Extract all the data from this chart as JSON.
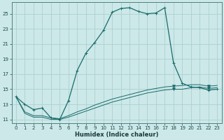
{
  "xlabel": "Humidex (Indice chaleur)",
  "xlim": [
    -0.5,
    23.5
  ],
  "ylim": [
    10.5,
    26.5
  ],
  "xticks": [
    0,
    1,
    2,
    3,
    4,
    5,
    6,
    7,
    8,
    9,
    10,
    11,
    12,
    13,
    14,
    15,
    16,
    17,
    18,
    19,
    20,
    21,
    22,
    23
  ],
  "yticks": [
    11,
    13,
    15,
    17,
    19,
    21,
    23,
    25
  ],
  "bg_color": "#cce8e8",
  "grid_color": "#a8cccc",
  "line_color": "#1a6b6b",
  "line1_x": [
    0,
    1,
    2,
    3,
    4,
    5,
    6,
    7,
    8,
    9,
    10,
    11,
    12,
    13,
    14,
    15,
    16,
    17,
    18,
    19,
    20,
    21,
    22,
    23
  ],
  "line1_y": [
    14.0,
    13.0,
    12.3,
    12.5,
    11.2,
    11.0,
    13.5,
    17.5,
    19.8,
    21.2,
    22.8,
    25.2,
    25.7,
    25.8,
    25.3,
    25.0,
    25.1,
    25.8,
    18.5,
    15.8,
    15.3,
    15.2,
    14.9,
    15.0
  ],
  "line2_x": [
    0,
    1,
    2,
    3,
    4,
    5,
    6,
    7,
    8,
    9,
    10,
    11,
    12,
    13,
    14,
    15,
    16,
    17,
    18,
    19,
    20,
    21,
    22,
    23
  ],
  "line2_y": [
    14.0,
    11.8,
    11.3,
    11.3,
    11.0,
    11.0,
    11.3,
    11.7,
    12.1,
    12.5,
    12.9,
    13.3,
    13.6,
    13.9,
    14.2,
    14.5,
    14.7,
    14.9,
    15.0,
    15.0,
    15.2,
    15.3,
    15.1,
    15.2
  ],
  "line3_x": [
    0,
    1,
    2,
    3,
    4,
    5,
    6,
    7,
    8,
    9,
    10,
    11,
    12,
    13,
    14,
    15,
    16,
    17,
    18,
    19,
    20,
    21,
    22,
    23
  ],
  "line3_y": [
    14.0,
    12.0,
    11.5,
    11.5,
    11.2,
    11.1,
    11.5,
    12.0,
    12.4,
    12.9,
    13.3,
    13.7,
    14.0,
    14.3,
    14.6,
    14.9,
    15.1,
    15.3,
    15.4,
    15.5,
    15.6,
    15.6,
    15.4,
    15.5
  ],
  "marker1_indices": [
    0,
    1,
    2,
    3,
    4,
    5,
    6,
    7,
    8,
    9,
    10,
    11,
    12,
    13,
    14,
    15,
    16,
    17,
    18,
    19,
    20,
    21,
    22,
    23
  ],
  "vmarker2_indices": [
    18,
    22
  ],
  "vmarker3_indices": [
    18,
    22
  ]
}
